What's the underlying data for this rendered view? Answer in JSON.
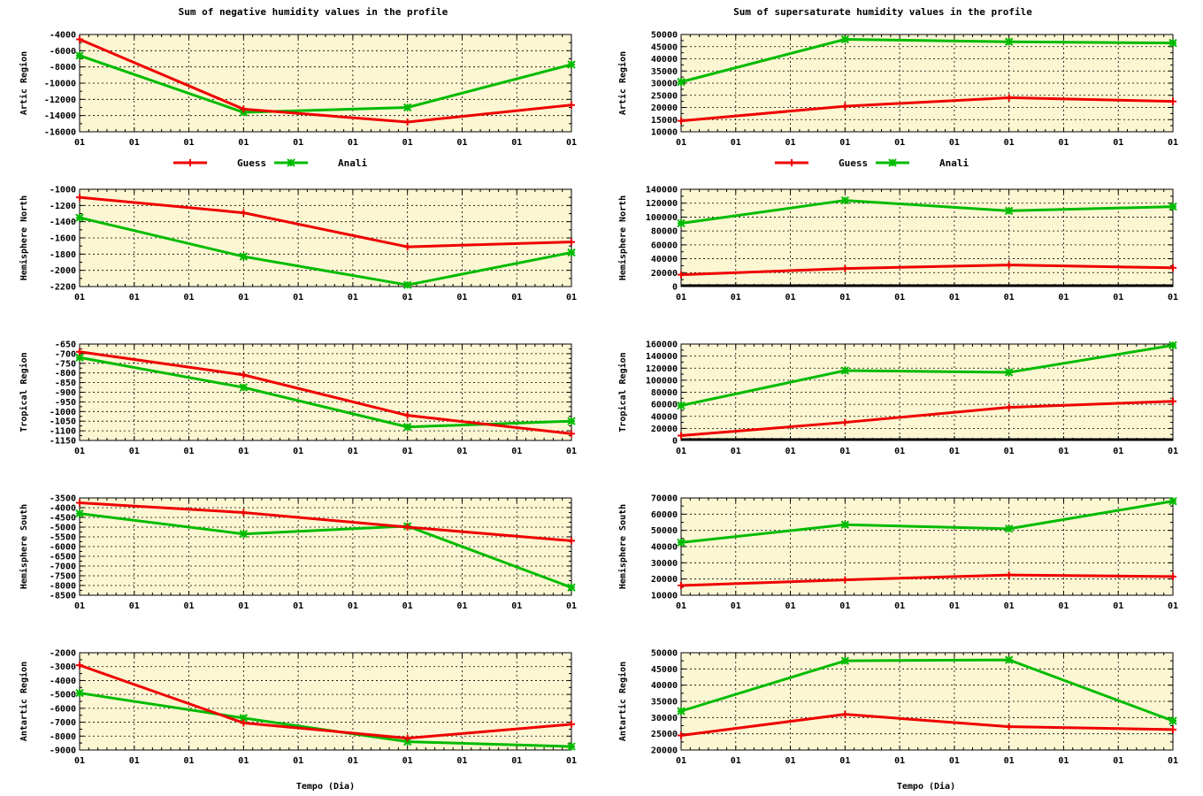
{
  "column_titles": {
    "left": "Sum of negative humidity values in the    profile",
    "right": "Sum of supersaturate humidity values in the profile"
  },
  "xlabel": "Tempo (Dia)",
  "legend": {
    "guess": "Guess",
    "anali": "Anali"
  },
  "colors": {
    "guess": "#ee0000",
    "anali": "#00bb00",
    "plot_bg": "#fdf6d2",
    "grid": "#000000"
  },
  "x_tick_labels": [
    "01",
    "01",
    "01",
    "01",
    "01",
    "01",
    "01",
    "01",
    "01",
    "01"
  ],
  "chart_data": [
    {
      "id": "neg-artic",
      "type": "line",
      "col": 0,
      "row": 0,
      "ylabel": "Artic Region",
      "ylim": [
        -16000,
        -4000
      ],
      "yticks": [
        -4000,
        -6000,
        -8000,
        -10000,
        -12000,
        -14000,
        -16000
      ],
      "x": [
        0,
        1,
        2,
        3
      ],
      "series": [
        {
          "name": "Guess",
          "values": [
            -4600,
            -13200,
            -14800,
            -12700
          ]
        },
        {
          "name": "Anali",
          "values": [
            -6600,
            -13600,
            -13000,
            -7700
          ]
        }
      ]
    },
    {
      "id": "pos-artic",
      "type": "line",
      "col": 1,
      "row": 0,
      "ylabel": "Artic Region",
      "ylim": [
        10000,
        50000
      ],
      "yticks": [
        50000,
        45000,
        40000,
        35000,
        30000,
        25000,
        20000,
        15000,
        10000
      ],
      "x": [
        0,
        1,
        2,
        3
      ],
      "series": [
        {
          "name": "Guess",
          "values": [
            14500,
            20500,
            24000,
            22500
          ]
        },
        {
          "name": "Anali",
          "values": [
            30500,
            48000,
            47000,
            46500
          ]
        }
      ]
    },
    {
      "id": "neg-hn",
      "type": "line",
      "col": 0,
      "row": 1,
      "ylabel": "Hemisphere North",
      "ylim": [
        -2200,
        -1000
      ],
      "yticks": [
        -1000,
        -1200,
        -1400,
        -1600,
        -1800,
        -2000,
        -2200
      ],
      "x": [
        0,
        1,
        2,
        3
      ],
      "series": [
        {
          "name": "Guess",
          "values": [
            -1100,
            -1290,
            -1710,
            -1650
          ]
        },
        {
          "name": "Anali",
          "values": [
            -1350,
            -1830,
            -2180,
            -1780
          ]
        }
      ]
    },
    {
      "id": "pos-hn",
      "type": "line",
      "col": 1,
      "row": 1,
      "ylabel": "Hemisphere North",
      "ylim": [
        0,
        140000
      ],
      "yticks": [
        140000,
        120000,
        100000,
        80000,
        60000,
        40000,
        20000,
        0
      ],
      "x": [
        0,
        1,
        2,
        3
      ],
      "series": [
        {
          "name": "Guess",
          "values": [
            17000,
            26000,
            31000,
            27000
          ]
        },
        {
          "name": "Anali",
          "values": [
            91000,
            124000,
            109000,
            115000
          ]
        }
      ]
    },
    {
      "id": "neg-trop",
      "type": "line",
      "col": 0,
      "row": 2,
      "ylabel": "Tropical Region",
      "ylim": [
        -1150,
        -650
      ],
      "yticks": [
        -650,
        -700,
        -750,
        -800,
        -850,
        -900,
        -950,
        -1000,
        -1050,
        -1100,
        -1150
      ],
      "x": [
        0,
        1,
        2,
        3
      ],
      "series": [
        {
          "name": "Guess",
          "values": [
            -690,
            -810,
            -1020,
            -1115
          ]
        },
        {
          "name": "Anali",
          "values": [
            -720,
            -875,
            -1080,
            -1050
          ]
        }
      ]
    },
    {
      "id": "pos-trop",
      "type": "line",
      "col": 1,
      "row": 2,
      "ylabel": "Tropical Region",
      "ylim": [
        0,
        160000
      ],
      "yticks": [
        160000,
        140000,
        120000,
        100000,
        80000,
        60000,
        40000,
        20000,
        0
      ],
      "x": [
        0,
        1,
        2,
        3
      ],
      "series": [
        {
          "name": "Guess",
          "values": [
            8000,
            30000,
            55000,
            65000
          ]
        },
        {
          "name": "Anali",
          "values": [
            58000,
            116000,
            113000,
            158000
          ]
        }
      ]
    },
    {
      "id": "neg-hs",
      "type": "line",
      "col": 0,
      "row": 3,
      "ylabel": "Hemisphere South",
      "ylim": [
        -8500,
        -3500
      ],
      "yticks": [
        -3500,
        -4000,
        -4500,
        -5000,
        -5500,
        -6000,
        -6500,
        -7000,
        -7500,
        -8000,
        -8500
      ],
      "x": [
        0,
        1,
        2,
        3
      ],
      "series": [
        {
          "name": "Guess",
          "values": [
            -3750,
            -4250,
            -5000,
            -5700
          ]
        },
        {
          "name": "Anali",
          "values": [
            -4300,
            -5350,
            -4950,
            -8100
          ]
        }
      ]
    },
    {
      "id": "pos-hs",
      "type": "line",
      "col": 1,
      "row": 3,
      "ylabel": "Hemisphere South",
      "ylim": [
        10000,
        70000
      ],
      "yticks": [
        70000,
        60000,
        50000,
        40000,
        30000,
        20000,
        10000
      ],
      "x": [
        0,
        1,
        2,
        3
      ],
      "series": [
        {
          "name": "Guess",
          "values": [
            16000,
            19500,
            22500,
            21500
          ]
        },
        {
          "name": "Anali",
          "values": [
            42500,
            53500,
            51000,
            68000
          ]
        }
      ]
    },
    {
      "id": "neg-ant",
      "type": "line",
      "col": 0,
      "row": 4,
      "ylabel": "Antartic Region",
      "ylim": [
        -9000,
        -2000
      ],
      "yticks": [
        -2000,
        -3000,
        -4000,
        -5000,
        -6000,
        -7000,
        -8000,
        -9000
      ],
      "x": [
        0,
        1,
        2,
        3
      ],
      "series": [
        {
          "name": "Guess",
          "values": [
            -2900,
            -7050,
            -8150,
            -7150
          ]
        },
        {
          "name": "Anali",
          "values": [
            -4900,
            -6700,
            -8400,
            -8750
          ]
        }
      ]
    },
    {
      "id": "pos-ant",
      "type": "line",
      "col": 1,
      "row": 4,
      "ylabel": "Antartic Region",
      "ylim": [
        20000,
        50000
      ],
      "yticks": [
        50000,
        45000,
        40000,
        35000,
        30000,
        25000,
        20000
      ],
      "x": [
        0,
        1,
        2,
        3
      ],
      "series": [
        {
          "name": "Guess",
          "values": [
            24500,
            31000,
            27200,
            26300
          ]
        },
        {
          "name": "Anali",
          "values": [
            32000,
            47500,
            47800,
            29000
          ]
        }
      ]
    }
  ]
}
